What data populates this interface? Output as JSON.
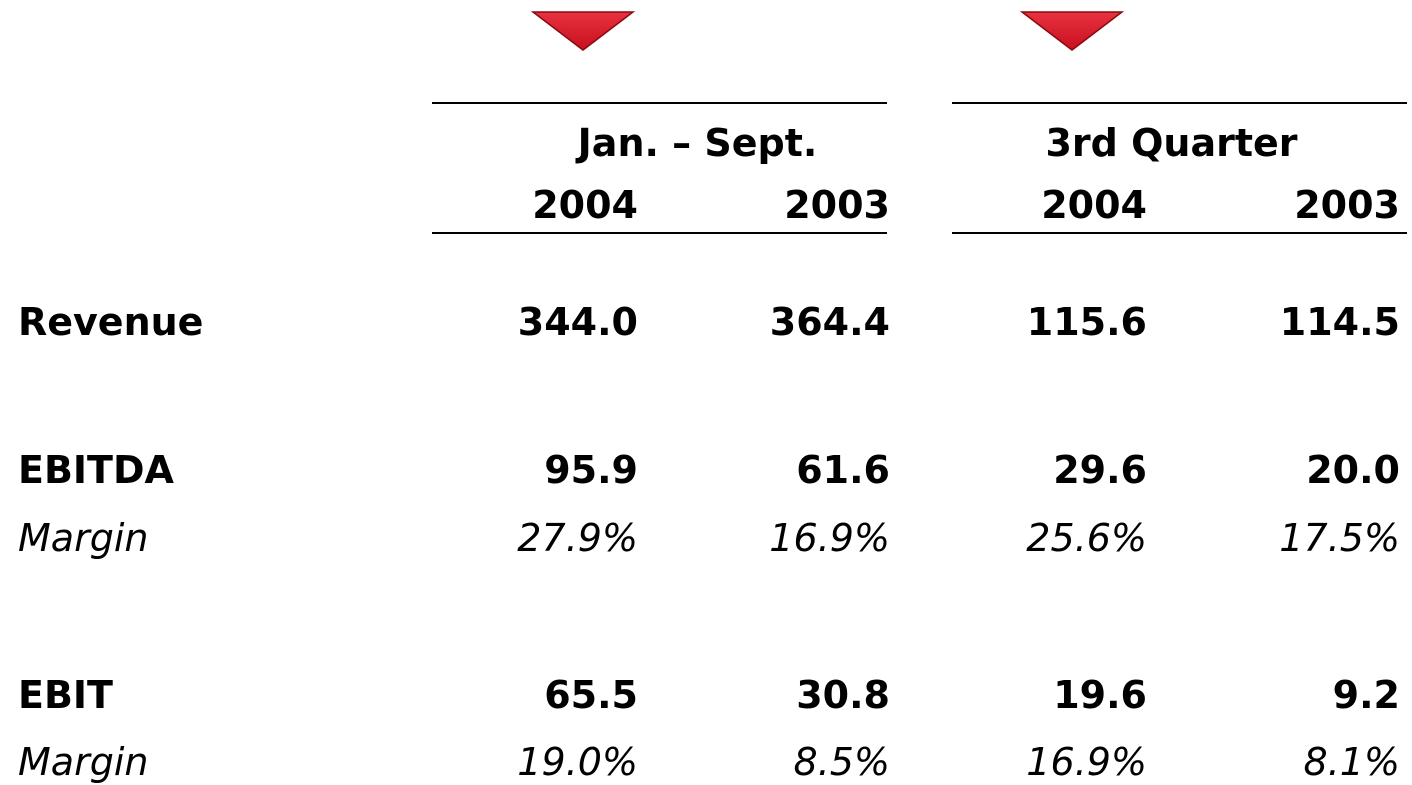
{
  "table": {
    "groups": [
      "Jan. – Sept.",
      "3rd Quarter"
    ],
    "columns": [
      "2004",
      "2003",
      "2004",
      "2003"
    ],
    "rows": [
      {
        "label": "Revenue",
        "cells": [
          "344.0",
          "364.4",
          "115.6",
          "114.5"
        ]
      },
      {
        "label": "EBITDA",
        "cells": [
          "95.9",
          "61.6",
          "29.6",
          "20.0"
        ]
      },
      {
        "label": "Margin",
        "cells": [
          "27.9%",
          "16.9%",
          "25.6%",
          "17.5%"
        ]
      },
      {
        "label": "EBIT",
        "cells": [
          "65.5",
          "30.8",
          "19.6",
          "9.2"
        ]
      },
      {
        "label": "Margin",
        "cells": [
          "19.0%",
          "8.5%",
          "16.9%",
          "8.1%"
        ]
      }
    ]
  }
}
